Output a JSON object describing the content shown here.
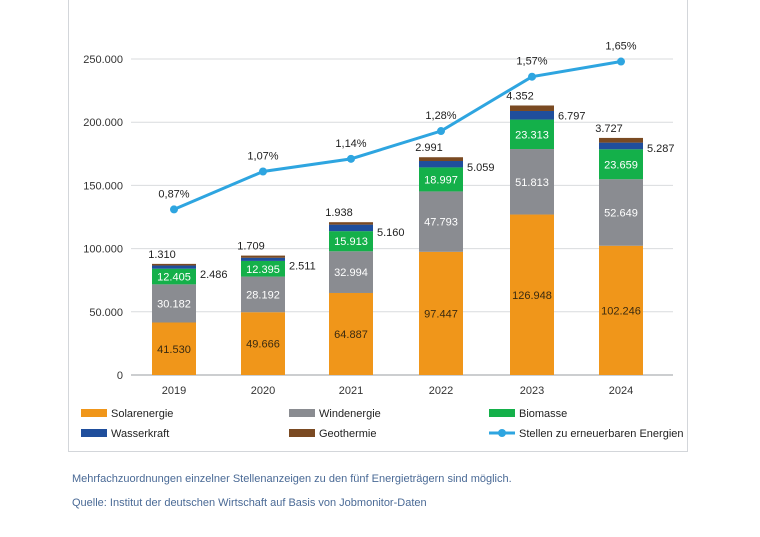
{
  "chart_data": {
    "type": "bar",
    "stacked": true,
    "categories": [
      "2019",
      "2020",
      "2021",
      "2022",
      "2023",
      "2024"
    ],
    "ylim": [
      0,
      250000
    ],
    "yticks": [
      0,
      50000,
      100000,
      150000,
      200000,
      250000
    ],
    "ytick_labels": [
      "0",
      "50.000",
      "100.000",
      "150.000",
      "200.000",
      "250.000"
    ],
    "grid": true,
    "legend_position": "bottom",
    "series": [
      {
        "name": "Solarenergie",
        "color": "#f0961a",
        "values": [
          41530,
          49666,
          64887,
          97447,
          126948,
          102246
        ],
        "labels": [
          "41.530",
          "49.666",
          "64.887",
          "97.447",
          "126.948",
          "102.246"
        ]
      },
      {
        "name": "Windenergie",
        "color": "#8a8c91",
        "values": [
          30182,
          28192,
          32994,
          47793,
          51813,
          52649
        ],
        "labels": [
          "30.182",
          "28.192",
          "32.994",
          "47.793",
          "51.813",
          "52.649"
        ]
      },
      {
        "name": "Biomasse",
        "color": "#14b04a",
        "values": [
          12405,
          12395,
          15913,
          18997,
          23313,
          23659
        ],
        "labels": [
          "12.405",
          "12.395",
          "15.913",
          "18.997",
          "23.313",
          "23.659"
        ]
      },
      {
        "name": "Wasserkraft",
        "color": "#1f4e9c",
        "values": [
          2486,
          2511,
          5160,
          5059,
          6797,
          5287
        ],
        "labels": [
          "2.486",
          "2.511",
          "5.160",
          "5.059",
          "6.797",
          "5.287"
        ]
      },
      {
        "name": "Geothermie",
        "color": "#7a4a22",
        "values": [
          1310,
          1709,
          1938,
          2991,
          4352,
          3727
        ],
        "labels": [
          "1.310",
          "1.709",
          "1.938",
          "2.991",
          "4.352",
          "3.727"
        ]
      }
    ],
    "line": {
      "name": "Stellen zu erneuerbaren Energien",
      "color": "#2ea5e0",
      "values": [
        131000,
        161000,
        171000,
        193000,
        236000,
        248000
      ],
      "labels": [
        "0,87%",
        "1,07%",
        "1,14%",
        "1,28%",
        "1,57%",
        "1,65%"
      ]
    }
  },
  "notes": {
    "line1": "Mehrfachzuordnungen einzelner Stellenanzeigen zu den fünf Energieträgern sind möglich.",
    "line2": "Quelle: Institut der deutschen Wirtschaft auf Basis von Jobmonitor-Daten"
  }
}
